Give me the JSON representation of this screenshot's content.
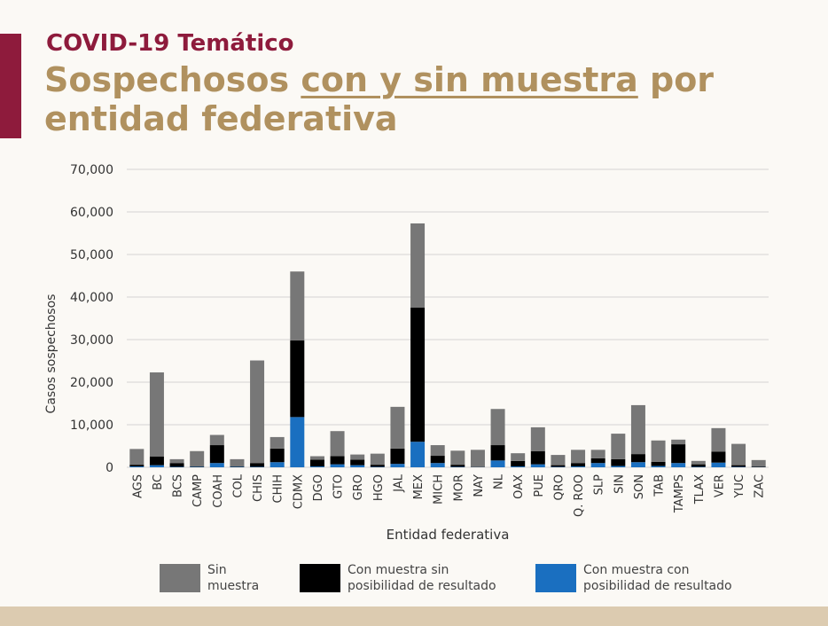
{
  "header": {
    "kicker": "COVID-19 Temático",
    "title_pre": "Sospechosos ",
    "title_underlined": "con y sin muestra",
    "title_post": " por entidad federativa"
  },
  "chart_data": {
    "type": "bar",
    "stacked": true,
    "xlabel": "Entidad federativa",
    "ylabel": "Casos sospechosos",
    "ylim": [
      0,
      70000
    ],
    "yticks": [
      0,
      10000,
      20000,
      30000,
      40000,
      50000,
      60000,
      70000
    ],
    "ytick_labels": [
      "0",
      "10,000",
      "20,000",
      "30,000",
      "40,000",
      "50,000",
      "60,000",
      "70,000"
    ],
    "grid": true,
    "legend_position": "bottom",
    "categories": [
      "AGS",
      "BC",
      "BCS",
      "CAMP",
      "COAH",
      "COL",
      "CHIS",
      "CHIH",
      "CDMX",
      "DGO",
      "GTO",
      "GRO",
      "HGO",
      "JAL",
      "MEX",
      "MICH",
      "MOR",
      "NAY",
      "NL",
      "OAX",
      "PUE",
      "QRO",
      "Q. ROO",
      "SLP",
      "SIN",
      "SON",
      "TAB",
      "TAMPS",
      "TLAX",
      "VER",
      "YUC",
      "ZAC"
    ],
    "series": [
      {
        "name": "Con muestra con posibilidad de resultado",
        "color": "#1a6fc0",
        "values": [
          200,
          500,
          100,
          100,
          1000,
          100,
          100,
          1200,
          11800,
          200,
          700,
          500,
          100,
          800,
          6000,
          1000,
          100,
          50,
          1600,
          200,
          700,
          100,
          200,
          1000,
          300,
          1200,
          300,
          1000,
          100,
          1100,
          100,
          50
        ]
      },
      {
        "name": "Con muestra sin posibilidad de resultado",
        "color": "#000000",
        "values": [
          400,
          2000,
          900,
          100,
          4200,
          100,
          900,
          3200,
          18000,
          1600,
          1900,
          1300,
          500,
          3600,
          31500,
          1700,
          500,
          50,
          3600,
          1300,
          3100,
          400,
          800,
          1100,
          1600,
          1900,
          1000,
          4400,
          600,
          2600,
          400,
          150
        ]
      },
      {
        "name": "Sin muestra",
        "color": "#777777",
        "values": [
          3700,
          19800,
          900,
          3600,
          2400,
          1700,
          24100,
          2700,
          16200,
          800,
          5900,
          1200,
          2600,
          9800,
          19800,
          2500,
          3300,
          4000,
          8500,
          1800,
          5600,
          2400,
          3100,
          2000,
          6000,
          11500,
          5000,
          1100,
          800,
          5500,
          5000,
          1500
        ]
      }
    ]
  },
  "legend": [
    {
      "line1": "Sin",
      "line2": "muestra",
      "color": "#777777"
    },
    {
      "line1": "Con muestra sin",
      "line2": "posibilidad de resultado",
      "color": "#000000"
    },
    {
      "line1": "Con muestra con",
      "line2": "posibilidad de resultado",
      "color": "#1a6fc0"
    }
  ]
}
